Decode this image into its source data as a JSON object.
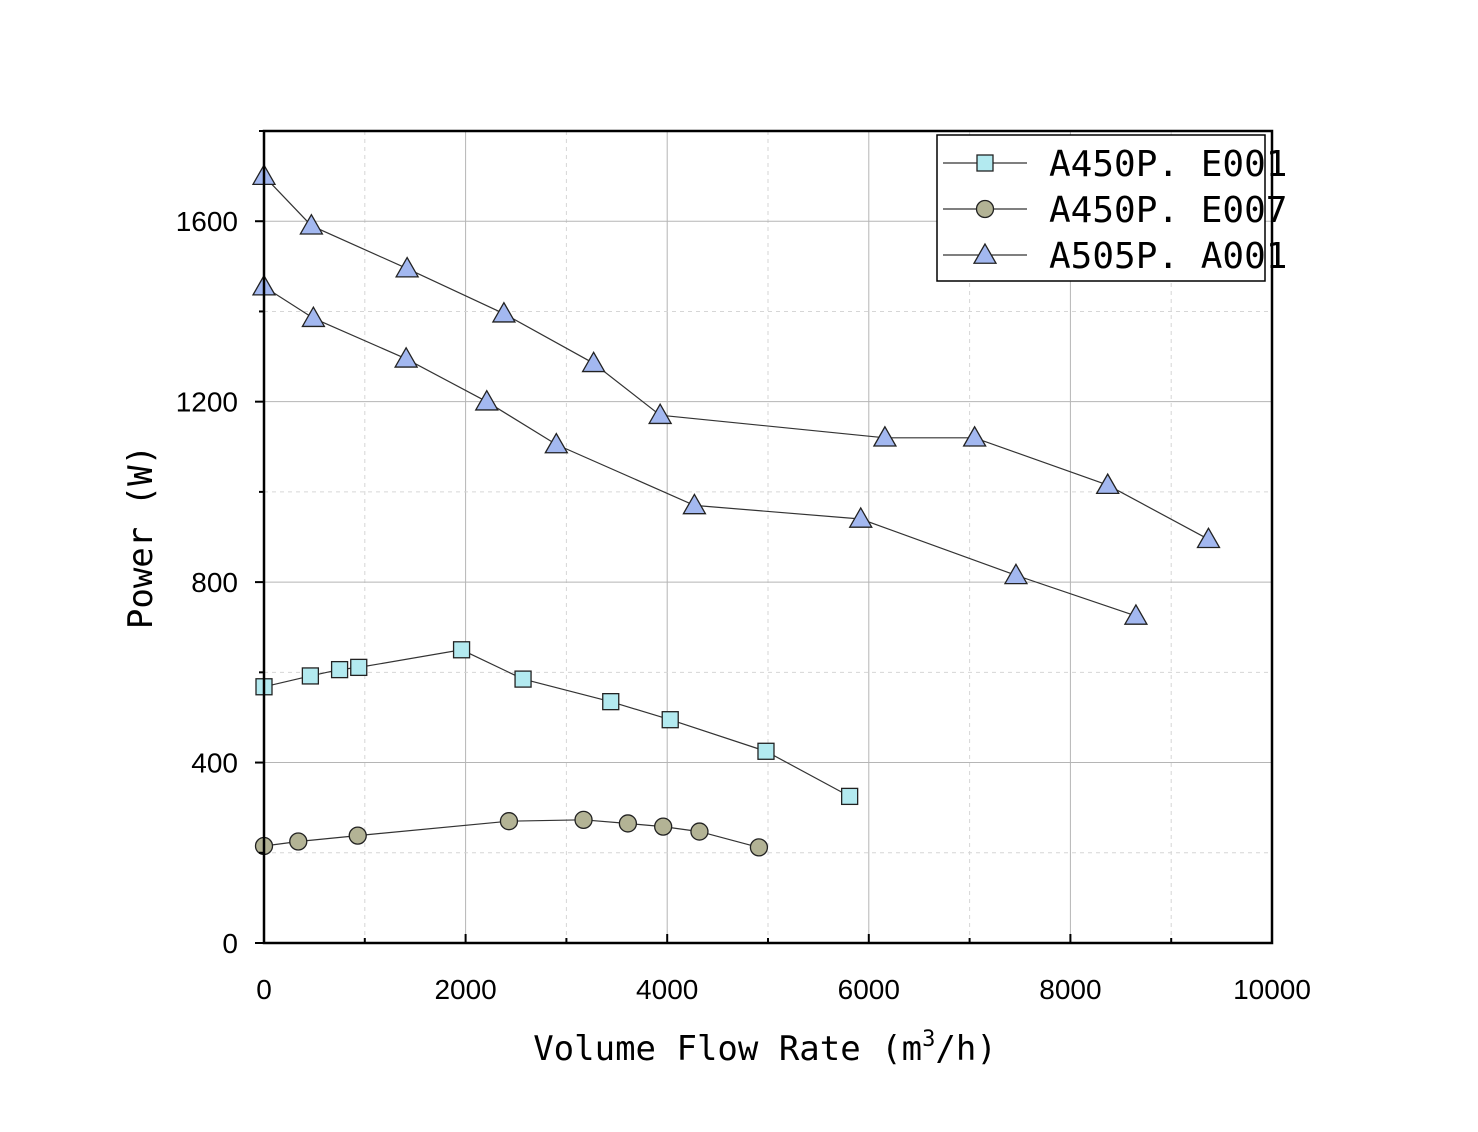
{
  "chart_data": {
    "type": "line",
    "xlabel": "Volume Flow Rate (m³/h)",
    "xlabel_parts": {
      "main": "Volume Flow Rate (m",
      "sup": "3",
      "tail": "/h)"
    },
    "ylabel": "Power (W)",
    "xlim": [
      0,
      10000
    ],
    "ylim": [
      0,
      1800
    ],
    "xticks": [
      0,
      2000,
      4000,
      6000,
      8000,
      10000
    ],
    "yticks": [
      0,
      400,
      800,
      1200,
      1600
    ],
    "xtick_labels": [
      "0",
      "2000",
      "4000",
      "6000",
      "8000",
      "10000"
    ],
    "ytick_labels": [
      "0",
      "400",
      "800",
      "1200",
      "1600"
    ],
    "grid": true,
    "legend_position": "top-right",
    "legend": [
      "A450P. E001",
      "A450P. E007",
      "A505P. A001"
    ],
    "series": [
      {
        "name": "A450P. E001",
        "marker": "square",
        "color": "#b3eaf0",
        "points": [
          [
            0,
            568
          ],
          [
            460,
            592
          ],
          [
            750,
            606
          ],
          [
            940,
            611
          ],
          [
            1960,
            650
          ],
          [
            2570,
            585
          ],
          [
            3440,
            535
          ],
          [
            4030,
            495
          ],
          [
            4980,
            425
          ],
          [
            5810,
            325
          ]
        ]
      },
      {
        "name": "A450P. E007",
        "marker": "circle",
        "color": "#b3b395",
        "points": [
          [
            0,
            215
          ],
          [
            340,
            225
          ],
          [
            930,
            238
          ],
          [
            2430,
            270
          ],
          [
            3170,
            273
          ],
          [
            3610,
            265
          ],
          [
            3960,
            258
          ],
          [
            4320,
            247
          ],
          [
            4910,
            212
          ]
        ]
      },
      {
        "name": "A505P. A001",
        "marker": "triangle",
        "color": "#a3b8f0",
        "points": [
          [
            0,
            1700
          ],
          [
            470,
            1590
          ],
          [
            1420,
            1495
          ],
          [
            2380,
            1395
          ],
          [
            3270,
            1285
          ],
          [
            3930,
            1170
          ],
          [
            6160,
            1120
          ],
          [
            7050,
            1120
          ],
          [
            8370,
            1015
          ],
          [
            9370,
            895
          ]
        ]
      },
      {
        "name": "A505P. A001",
        "marker": "triangle",
        "color": "#a3b8f0",
        "points": [
          [
            0,
            1455
          ],
          [
            490,
            1385
          ],
          [
            1410,
            1295
          ],
          [
            2210,
            1200
          ],
          [
            2900,
            1105
          ],
          [
            4270,
            970
          ],
          [
            5920,
            940
          ],
          [
            7460,
            815
          ],
          [
            8650,
            725
          ]
        ]
      }
    ]
  }
}
